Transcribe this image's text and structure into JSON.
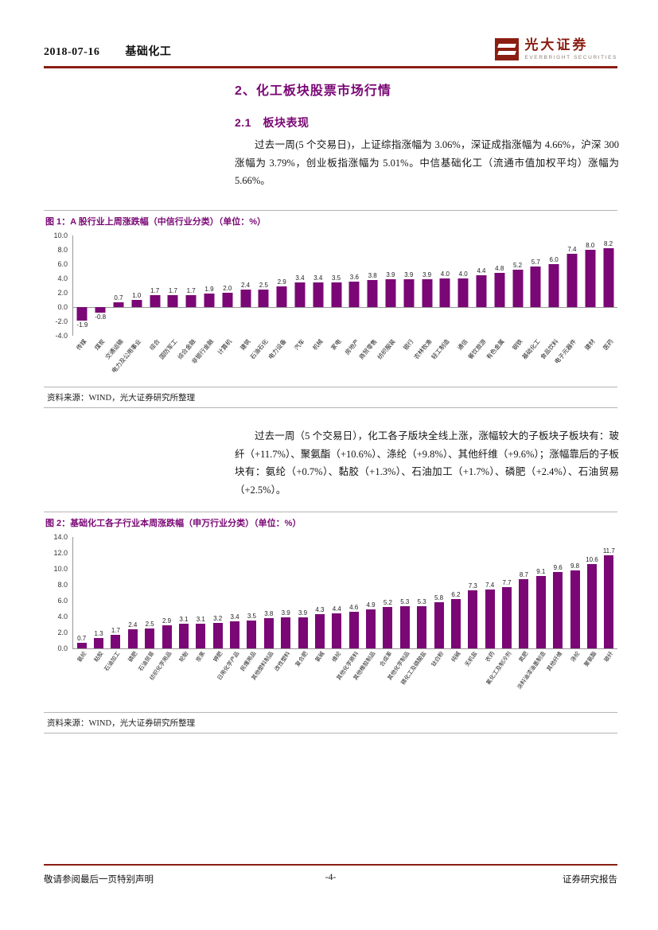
{
  "header": {
    "date": "2018-07-16",
    "sector": "基础化工"
  },
  "brand": {
    "name": "光大证券",
    "subtitle": "EVERBRIGHT SECURITIES"
  },
  "content": {
    "section_title": "2、化工板块股票市场行情",
    "subsection_title": "2.1　板块表现",
    "paragraph1": "过去一周(5 个交易日)，上证综指涨幅为 3.06%，深证成指涨幅为 4.66%，沪深 300 涨幅为 3.79%，创业板指涨幅为 5.01%。中信基础化工（流通市值加权平均）涨幅为 5.66%。",
    "paragraph2": "过去一周（5 个交易日），化工各子版块全线上涨，涨幅较大的子板块子板块有：玻纤（+11.7%）、聚氨酯（+10.6%）、涤纶（+9.8%）、其他纤维（+9.6%）；涨幅靠后的子板块有：氨纶（+0.7%）、黏胶（+1.3%）、石油加工（+1.7%）、磷肥（+2.4%）、石油贸易（+2.5%）。"
  },
  "figures": [
    {
      "caption": "图 1：A 股行业上周涨跌幅（中信行业分类）（单位：%）",
      "source": "资料来源：WIND，光大证券研究所整理"
    },
    {
      "caption": "图 2：基础化工各子行业本周涨跌幅（申万行业分类）（单位：%）",
      "source": "资料来源：WIND，光大证券研究所整理"
    }
  ],
  "footer": {
    "left": "敬请参阅最后一页特别声明",
    "center": "-4-",
    "right": "证券研究报告"
  },
  "colors": {
    "accent_purple": "#7A0775",
    "accent_maroon": "#8A1E12",
    "bar_color": "#7A0775"
  },
  "chart_data": [
    {
      "type": "bar",
      "title": "A股行业上周涨跌幅（中信行业分类）",
      "unit": "%",
      "xlabel": "",
      "ylabel": "",
      "ylim": [
        -4,
        10
      ],
      "yticks": [
        "10.0",
        "8.0",
        "6.0",
        "4.0",
        "2.0",
        "0.0",
        "-2.0",
        "-4.0"
      ],
      "grid": false,
      "legend": "none",
      "data_labels": true,
      "bar_color": "#7A0775",
      "categories": [
        "传媒",
        "煤炭",
        "交通运输",
        "电力及公用事业",
        "综合",
        "国防军工",
        "综合金融",
        "非银行金融",
        "计算机",
        "建筑",
        "石油石化",
        "电力设备",
        "汽车",
        "机械",
        "家电",
        "房地产",
        "商贸零售",
        "纺织服装",
        "银行",
        "农林牧渔",
        "轻工制造",
        "通信",
        "餐饮旅游",
        "有色金属",
        "钢铁",
        "基础化工",
        "食品饮料",
        "电子元器件",
        "建材",
        "医药"
      ],
      "values": [
        -1.9,
        -0.8,
        0.7,
        1.0,
        1.7,
        1.7,
        1.7,
        1.9,
        2.0,
        2.4,
        2.5,
        2.9,
        3.4,
        3.4,
        3.5,
        3.6,
        3.8,
        3.9,
        3.9,
        3.9,
        4.0,
        4.0,
        4.4,
        4.8,
        5.2,
        5.7,
        6.0,
        7.4,
        8.0,
        8.2
      ]
    },
    {
      "type": "bar",
      "title": "基础化工各子行业本周涨跌幅（申万行业分类）",
      "unit": "%",
      "xlabel": "",
      "ylabel": "",
      "ylim": [
        0,
        14
      ],
      "yticks": [
        "14.0",
        "12.0",
        "10.0",
        "8.0",
        "6.0",
        "4.0",
        "2.0",
        "0.0"
      ],
      "grid": false,
      "legend": "none",
      "data_labels": true,
      "bar_color": "#7A0775",
      "categories": [
        "氨纶",
        "粘胶",
        "石油加工",
        "磷肥",
        "石油贸易",
        "纺织化学用品",
        "轮胎",
        "炭黑",
        "钾肥",
        "日用化学产品",
        "民爆用品",
        "其他塑料制品",
        "改性塑料",
        "复合肥",
        "氯碱",
        "维纶",
        "其他化学原料",
        "其他橡胶制品",
        "合成革",
        "其他化学制品",
        "磷化工及磷酸盐",
        "钛白粉",
        "纯碱",
        "无机盐",
        "农药",
        "氟化工及制冷剂",
        "氮肥",
        "涂料油漆油墨制造",
        "其他纤维",
        "涤纶",
        "聚氨酯",
        "玻纤"
      ],
      "values": [
        0.7,
        1.3,
        1.7,
        2.4,
        2.5,
        2.9,
        3.1,
        3.1,
        3.2,
        3.4,
        3.5,
        3.8,
        3.9,
        3.9,
        4.3,
        4.4,
        4.6,
        4.9,
        5.2,
        5.3,
        5.3,
        5.8,
        6.2,
        7.3,
        7.4,
        7.7,
        8.7,
        9.1,
        9.6,
        9.8,
        10.6,
        11.7
      ]
    }
  ]
}
